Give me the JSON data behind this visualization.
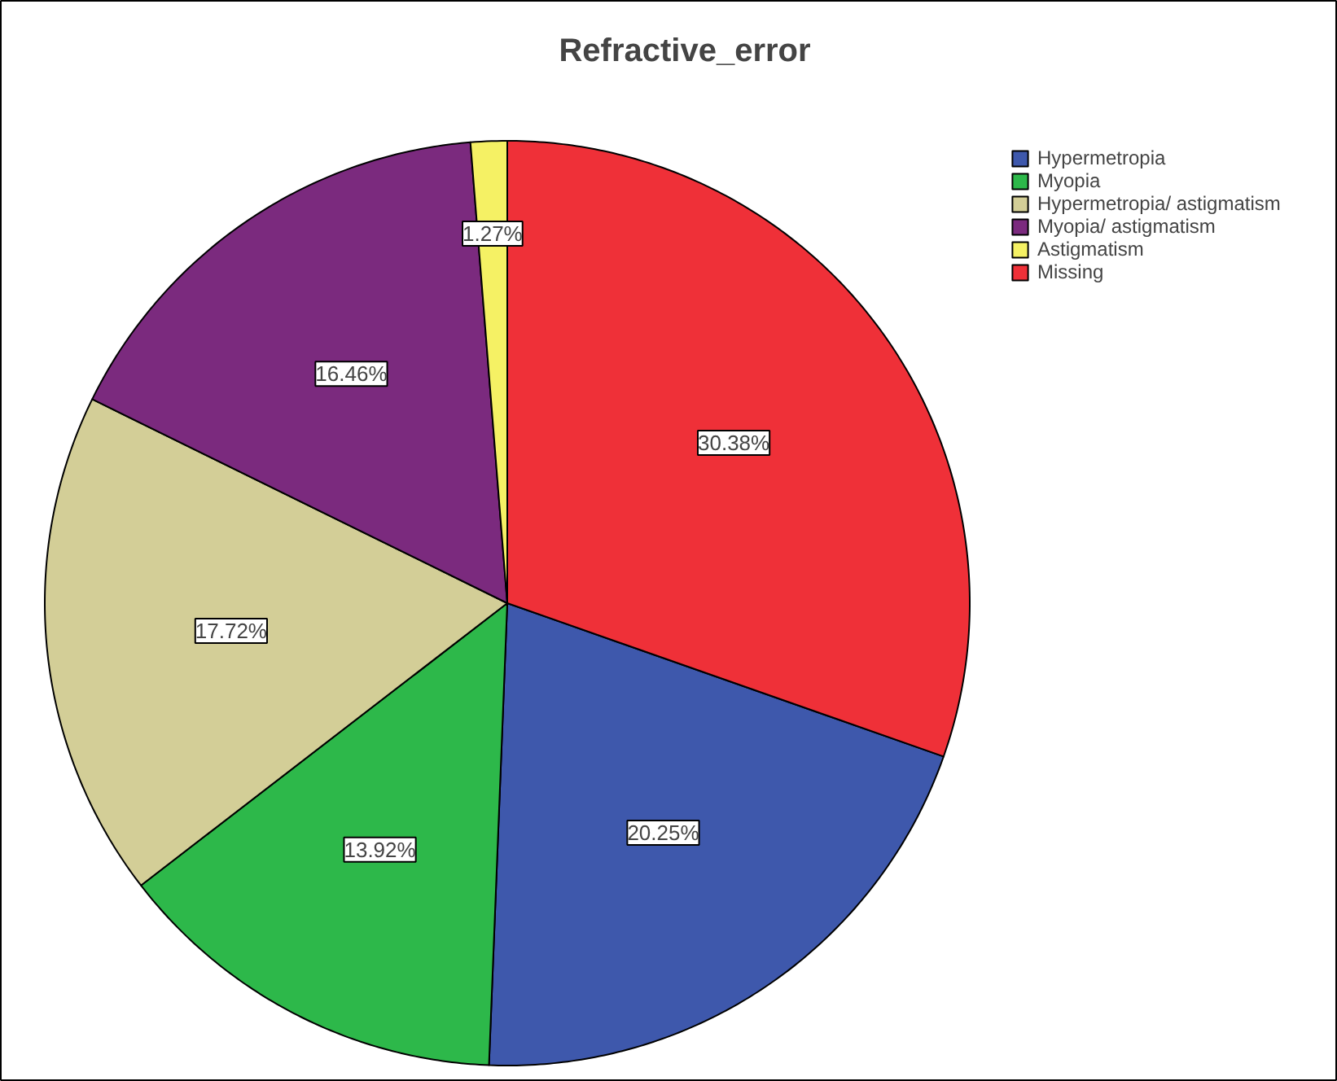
{
  "chart_data": {
    "type": "pie",
    "title": "Refractive_error",
    "categories": [
      "Hypermetropia",
      "Myopia",
      "Hypermetropia/ astigmatism",
      "Myopia/ astigmatism",
      "Astigmatism",
      "Missing"
    ],
    "values": [
      20.25,
      13.92,
      17.72,
      16.46,
      1.27,
      30.38
    ],
    "colors": [
      "#3e58ac",
      "#2db84a",
      "#d3ce97",
      "#7b2a7e",
      "#f5f164",
      "#ef3038"
    ],
    "value_labels": [
      "20.25%",
      "13.92%",
      "17.72%",
      "16.46%",
      "1.27%",
      "30.38%"
    ],
    "legend": "top right"
  }
}
